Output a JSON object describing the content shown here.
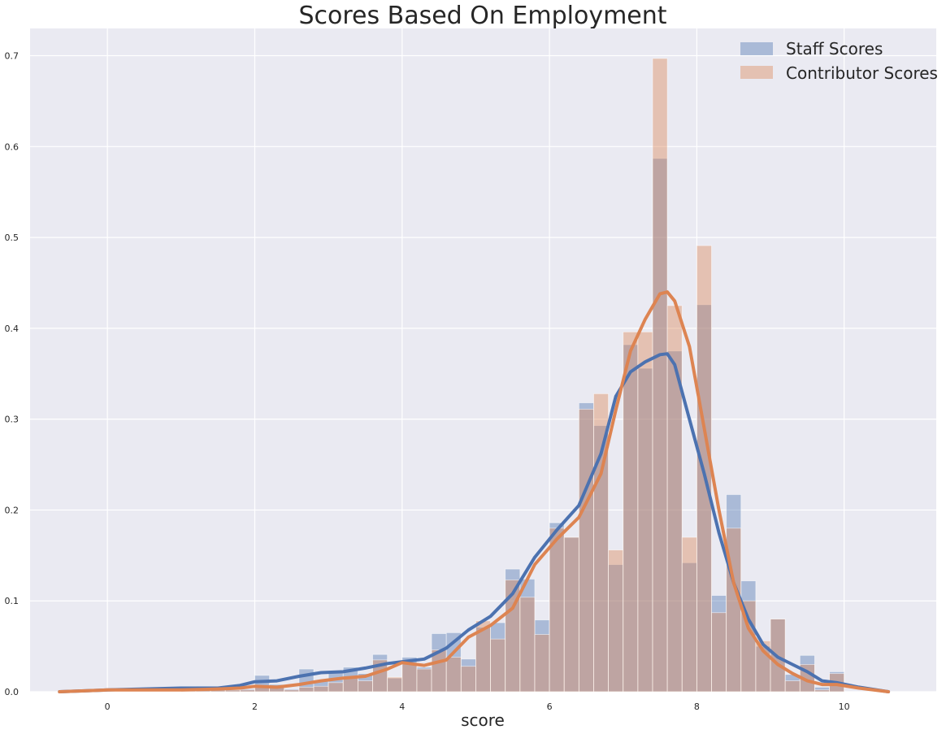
{
  "chart_data": {
    "type": "bar",
    "title": "Scores Based On Employment",
    "xlabel": "score",
    "ylabel": "",
    "xlim": [
      -1.05,
      11.25
    ],
    "ylim": [
      0,
      0.73
    ],
    "grid": true,
    "legend_position": "top-right",
    "xticks": [
      0,
      2,
      4,
      6,
      8,
      10
    ],
    "yticks": [
      0.0,
      0.1,
      0.2,
      0.3,
      0.4,
      0.5,
      0.6,
      0.7
    ],
    "bin_width": 0.2,
    "bin_starts": [
      1.0,
      1.2,
      1.4,
      1.6,
      1.8,
      2.0,
      2.2,
      2.4,
      2.6,
      2.8,
      3.0,
      3.2,
      3.4,
      3.6,
      3.8,
      4.0,
      4.2,
      4.4,
      4.6,
      4.8,
      5.0,
      5.2,
      5.4,
      5.6,
      5.8,
      6.0,
      6.2,
      6.4,
      6.6,
      6.8,
      7.0,
      7.2,
      7.4,
      7.6,
      7.8,
      8.0,
      8.2,
      8.4,
      8.6,
      8.8,
      9.0,
      9.2,
      9.4,
      9.6,
      9.8
    ],
    "series": [
      {
        "name": "Staff Scores",
        "color": "#4c72b0",
        "hist": [
          0.006,
          0.002,
          0.002,
          0.002,
          0.003,
          0.018,
          0.008,
          0.003,
          0.025,
          0.012,
          0.022,
          0.027,
          0.02,
          0.041,
          0.015,
          0.038,
          0.027,
          0.064,
          0.065,
          0.036,
          0.071,
          0.076,
          0.135,
          0.124,
          0.079,
          0.186,
          0.17,
          0.318,
          0.293,
          0.14,
          0.382,
          0.356,
          0.587,
          0.375,
          0.142,
          0.426,
          0.106,
          0.217,
          0.122,
          0.05,
          0.08,
          0.019,
          0.04,
          0.005,
          0.022
        ],
        "kde_x": [
          -0.65,
          0.0,
          0.5,
          1.0,
          1.5,
          1.8,
          2.0,
          2.3,
          2.6,
          2.9,
          3.2,
          3.5,
          3.8,
          4.0,
          4.3,
          4.6,
          4.9,
          5.2,
          5.5,
          5.8,
          6.1,
          6.4,
          6.7,
          6.9,
          7.1,
          7.3,
          7.5,
          7.6,
          7.7,
          7.9,
          8.1,
          8.3,
          8.5,
          8.7,
          8.9,
          9.1,
          9.3,
          9.5,
          9.7,
          9.9,
          10.2,
          10.6
        ],
        "kde_y": [
          0.0,
          0.002,
          0.003,
          0.004,
          0.004,
          0.007,
          0.011,
          0.012,
          0.017,
          0.021,
          0.022,
          0.026,
          0.031,
          0.033,
          0.036,
          0.048,
          0.068,
          0.083,
          0.108,
          0.148,
          0.178,
          0.205,
          0.262,
          0.325,
          0.352,
          0.363,
          0.371,
          0.372,
          0.36,
          0.3,
          0.24,
          0.175,
          0.12,
          0.08,
          0.052,
          0.038,
          0.03,
          0.022,
          0.012,
          0.01,
          0.005,
          0.0
        ]
      },
      {
        "name": "Contributor Scores",
        "color": "#dd8452",
        "hist": [
          0.003,
          0.002,
          0.002,
          0.002,
          0.002,
          0.005,
          0.005,
          0.002,
          0.005,
          0.006,
          0.01,
          0.015,
          0.012,
          0.035,
          0.016,
          0.031,
          0.025,
          0.046,
          0.038,
          0.028,
          0.078,
          0.058,
          0.123,
          0.104,
          0.063,
          0.18,
          0.17,
          0.311,
          0.328,
          0.156,
          0.396,
          0.396,
          0.697,
          0.425,
          0.17,
          0.491,
          0.087,
          0.18,
          0.1,
          0.056,
          0.08,
          0.012,
          0.03,
          0.002,
          0.02
        ],
        "kde_x": [
          -0.65,
          0.0,
          0.5,
          1.0,
          1.5,
          1.8,
          2.0,
          2.3,
          2.6,
          2.9,
          3.2,
          3.5,
          3.8,
          4.0,
          4.3,
          4.6,
          4.9,
          5.2,
          5.5,
          5.8,
          6.1,
          6.4,
          6.7,
          6.9,
          7.1,
          7.3,
          7.5,
          7.6,
          7.7,
          7.9,
          8.1,
          8.3,
          8.5,
          8.7,
          8.9,
          9.1,
          9.3,
          9.5,
          9.7,
          9.9,
          10.2,
          10.6
        ],
        "kde_y": [
          0.0,
          0.002,
          0.002,
          0.002,
          0.003,
          0.004,
          0.006,
          0.005,
          0.008,
          0.012,
          0.015,
          0.017,
          0.025,
          0.032,
          0.029,
          0.035,
          0.06,
          0.073,
          0.092,
          0.14,
          0.168,
          0.192,
          0.24,
          0.31,
          0.375,
          0.41,
          0.438,
          0.44,
          0.43,
          0.38,
          0.29,
          0.2,
          0.12,
          0.07,
          0.045,
          0.03,
          0.02,
          0.012,
          0.008,
          0.008,
          0.004,
          0.0
        ]
      }
    ]
  },
  "colors": {
    "plot_background": "#eaeaf2",
    "grid": "#ffffff",
    "text": "#262626"
  }
}
